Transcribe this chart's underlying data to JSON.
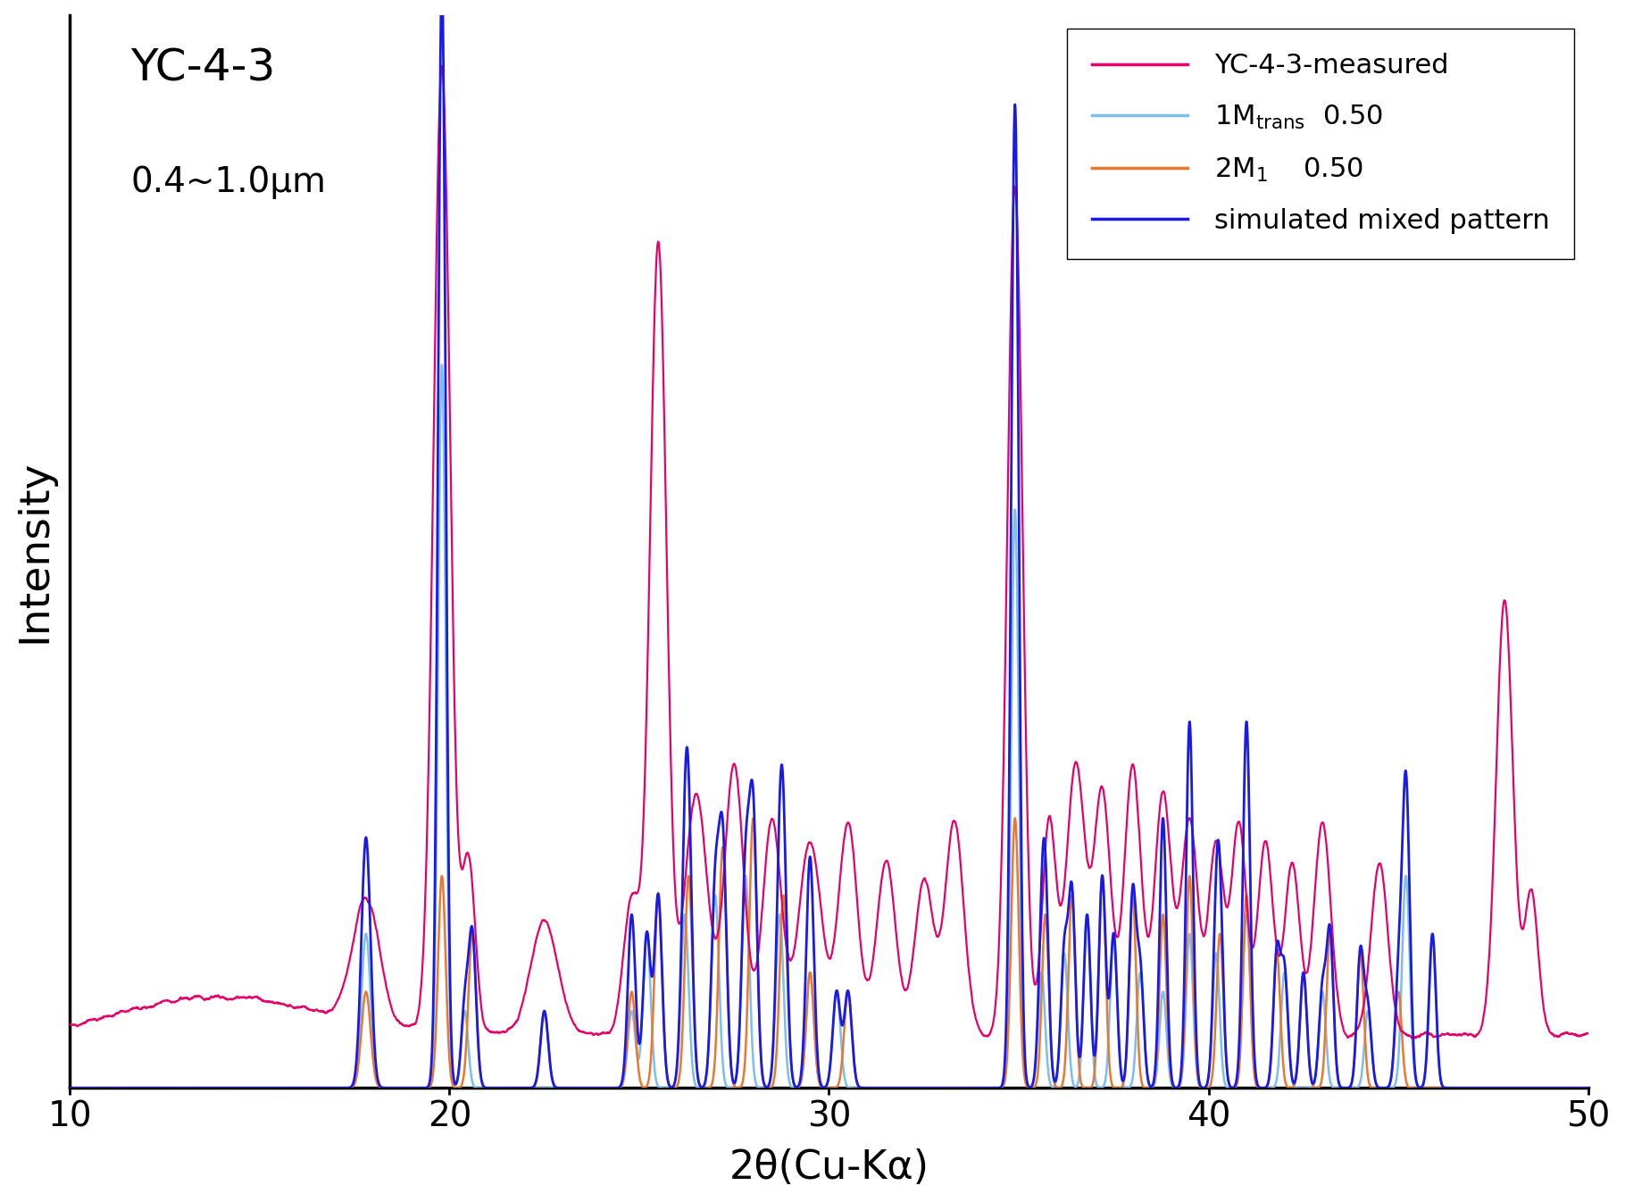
{
  "title_line1": "YC-4-3",
  "title_line2": "0.4~1.0μm",
  "xlabel": "2θ(Cu-Kα)",
  "ylabel": "Intensity",
  "xlim": [
    10,
    50
  ],
  "colors": {
    "measured": "#E8006A",
    "1Md": "#7BBFEA",
    "2M1": "#E87832",
    "simulated": "#1A1AE8"
  },
  "background_color": "#FFFFFF"
}
